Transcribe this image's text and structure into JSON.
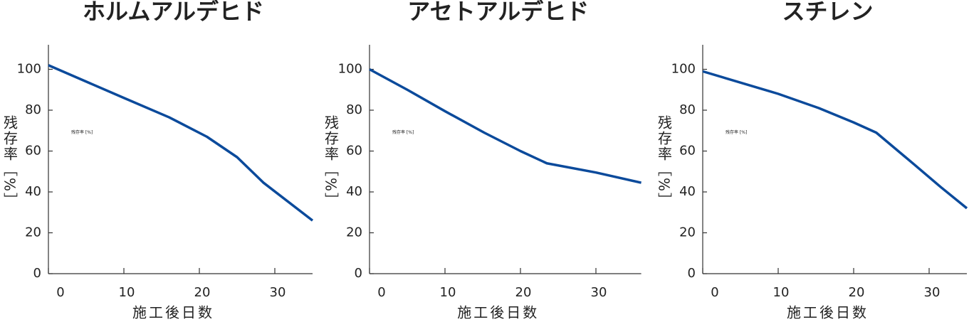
{
  "chart_data": [
    {
      "type": "line",
      "title": "ホルムアルデヒド",
      "xlabel": "施工後日数",
      "ylabel": "残存率［%］",
      "annotation": "残存率 [%]",
      "x": [
        0,
        10,
        16,
        21,
        23,
        25,
        28.5,
        35
      ],
      "series": [
        {
          "name": "ホルムアルデヒド",
          "color": "#0b4a9b",
          "values": [
            102,
            86,
            76.5,
            67,
            62,
            57,
            44.5,
            26
          ]
        }
      ],
      "xlim": [
        0,
        35
      ],
      "xticks": [
        0,
        10,
        20,
        30
      ],
      "ylim": [
        0,
        112
      ],
      "yticks": [
        0,
        20,
        40,
        60,
        80,
        100
      ]
    },
    {
      "type": "line",
      "title": "アセトアルデヒド",
      "xlabel": "施工後日数",
      "ylabel": "残存率［%］",
      "annotation": "残存率 [%]",
      "x": [
        0,
        5,
        10,
        15.2,
        20,
        23.5,
        30,
        36
      ],
      "series": [
        {
          "name": "アセトアルデヒド",
          "color": "#0b4a9b",
          "values": [
            100,
            90,
            79.5,
            69,
            60,
            54,
            49.5,
            44.5
          ]
        }
      ],
      "xlim": [
        0,
        36
      ],
      "xticks": [
        0,
        10,
        20,
        30
      ],
      "ylim": [
        0,
        112
      ],
      "yticks": [
        0,
        20,
        40,
        60,
        80,
        100
      ]
    },
    {
      "type": "line",
      "title": "スチレン",
      "xlabel": "施工後日数",
      "ylabel": "残存率［%］",
      "annotation": "残存率 [%]",
      "x": [
        0,
        10,
        15.4,
        20,
        23,
        28,
        31.5,
        35
      ],
      "series": [
        {
          "name": "スチレン",
          "color": "#0b4a9b",
          "values": [
            99,
            88,
            81,
            74,
            69,
            53.5,
            42.5,
            32
          ]
        }
      ],
      "xlim": [
        0,
        35
      ],
      "xticks": [
        0,
        10,
        20,
        30
      ],
      "ylim": [
        0,
        112
      ],
      "yticks": [
        0,
        20,
        40,
        60,
        80,
        100
      ]
    }
  ]
}
